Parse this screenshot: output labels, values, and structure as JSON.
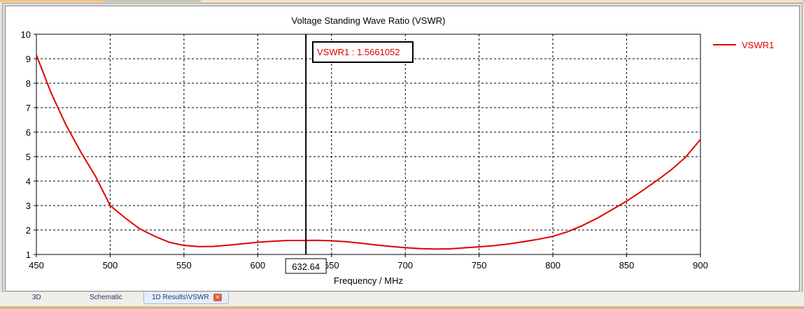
{
  "chart_data": {
    "type": "line",
    "title": "Voltage Standing Wave Ratio (VSWR)",
    "xlabel": "Frequency / MHz",
    "ylabel": "",
    "xlim": [
      450,
      900
    ],
    "ylim": [
      1,
      10
    ],
    "xticks": [
      450,
      500,
      550,
      600,
      650,
      700,
      750,
      800,
      850,
      900
    ],
    "yticks": [
      1,
      2,
      3,
      4,
      5,
      6,
      7,
      8,
      9,
      10
    ],
    "grid": true,
    "legend_position": "right",
    "series": [
      {
        "name": "VSWR1",
        "color": "#e00000",
        "x": [
          450,
          460,
          470,
          480,
          490,
          500,
          510,
          520,
          530,
          540,
          550,
          560,
          570,
          580,
          590,
          600,
          610,
          620,
          630,
          640,
          650,
          660,
          670,
          680,
          690,
          700,
          710,
          720,
          730,
          740,
          750,
          760,
          770,
          780,
          790,
          800,
          810,
          820,
          830,
          840,
          850,
          860,
          870,
          880,
          890,
          900
        ],
        "y": [
          9.15,
          7.6,
          6.3,
          5.2,
          4.2,
          3.0,
          2.5,
          2.05,
          1.75,
          1.5,
          1.37,
          1.32,
          1.33,
          1.38,
          1.44,
          1.5,
          1.54,
          1.57,
          1.57,
          1.58,
          1.56,
          1.52,
          1.46,
          1.39,
          1.33,
          1.28,
          1.24,
          1.22,
          1.23,
          1.27,
          1.31,
          1.36,
          1.43,
          1.52,
          1.62,
          1.74,
          1.93,
          2.18,
          2.48,
          2.83,
          3.18,
          3.58,
          4.0,
          4.45,
          4.98,
          5.7
        ]
      }
    ],
    "marker": {
      "x": 632.64,
      "x_label": "632.64",
      "label": "VSWR1 : 1.5661052"
    }
  },
  "tabs": [
    {
      "label": "3D"
    },
    {
      "label": "Schematic"
    },
    {
      "label": "1D Results\\VSWR"
    }
  ],
  "close_icon": "×"
}
